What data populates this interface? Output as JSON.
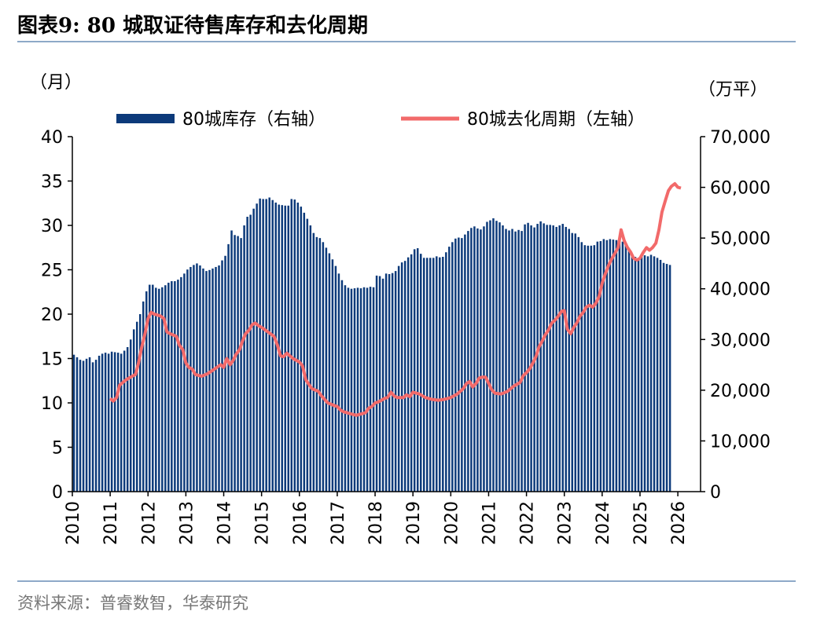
{
  "header": {
    "title": "图表9:   80 城取证待售库存和去化周期"
  },
  "footer": {
    "source": "资料来源：普睿数智，华泰研究"
  },
  "chart_data": {
    "type": "bar",
    "left_unit": "（月）",
    "right_unit": "（万平）",
    "x_ticks": [
      "2010",
      "2011",
      "2012",
      "2013",
      "2014",
      "2015",
      "2016",
      "2017",
      "2018",
      "2019",
      "2020",
      "2021",
      "2022",
      "2023",
      "2024",
      "2025",
      "2026"
    ],
    "left_ticks": [
      "0",
      "5",
      "10",
      "15",
      "20",
      "25",
      "30",
      "35",
      "40"
    ],
    "right_ticks": [
      "0",
      "10,000",
      "20,000",
      "30,000",
      "40,000",
      "50,000",
      "60,000",
      "70,000"
    ],
    "ylim_left": [
      0,
      40
    ],
    "ylim_right": [
      0,
      70000
    ],
    "xlim": [
      2010.0,
      2026.6
    ],
    "colors": {
      "bar": "#0c3a7a",
      "line": "#f26a6a",
      "rule": "#8ea9c8"
    },
    "bar_series": {
      "name": "80城库存（右轴）",
      "axis": "right",
      "start": 2010.0,
      "step_months": 1,
      "values": [
        27000,
        26500,
        26000,
        25800,
        26200,
        26500,
        25500,
        26000,
        26800,
        27200,
        27400,
        27200,
        27600,
        27500,
        27400,
        27200,
        27800,
        28500,
        30000,
        32000,
        33500,
        35000,
        37500,
        39500,
        40800,
        40800,
        40200,
        40000,
        40300,
        40700,
        41200,
        41500,
        41500,
        41800,
        42300,
        43000,
        43800,
        44300,
        44700,
        45000,
        44600,
        44000,
        43500,
        43700,
        44000,
        44300,
        44600,
        45600,
        46500,
        48800,
        51500,
        50600,
        50400,
        50000,
        52500,
        54200,
        54600,
        55800,
        56800,
        57800,
        57700,
        57700,
        58000,
        57500,
        57000,
        56600,
        56500,
        56400,
        56400,
        57700,
        57600,
        57000,
        56200,
        55000,
        53800,
        52500,
        51000,
        50200,
        50000,
        49200,
        48100,
        47000,
        45800,
        44500,
        43000,
        41700,
        40700,
        40200,
        40000,
        40100,
        40200,
        40100,
        40300,
        40200,
        40400,
        40300,
        42600,
        42500,
        42000,
        43000,
        42900,
        43100,
        43500,
        44500,
        45200,
        45500,
        46200,
        46800,
        47800,
        48000,
        46900,
        46100,
        46100,
        46100,
        46100,
        46400,
        46200,
        46300,
        47200,
        48300,
        49200,
        49900,
        50100,
        50000,
        50700,
        51400,
        52000,
        52300,
        51900,
        51700,
        52300,
        53200,
        53500,
        53900,
        53400,
        53100,
        52500,
        51800,
        51500,
        51800,
        51300,
        51600,
        51400,
        52700,
        53000,
        52500,
        52100,
        52800,
        53300,
        52900,
        52600,
        52600,
        52500,
        52200,
        52500,
        52800,
        52200,
        51800,
        51000,
        50900,
        50200,
        49200,
        48600,
        48500,
        48500,
        48600,
        49300,
        49400,
        49800,
        49600,
        49800,
        49700,
        49600,
        49500,
        49300,
        48800,
        47500,
        46900,
        46300,
        45900,
        46600,
        46600,
        46400,
        46700,
        46400,
        46100,
        45700,
        45100,
        44900,
        44700
      ]
    },
    "line_series": {
      "name": "80城去化周期（左轴）",
      "axis": "left",
      "points": [
        [
          2011.0,
          10.5
        ],
        [
          2011.08,
          10.2
        ],
        [
          2011.17,
          10.6
        ],
        [
          2011.25,
          12.0
        ],
        [
          2011.42,
          12.6
        ],
        [
          2011.58,
          13.0
        ],
        [
          2011.67,
          13.2
        ],
        [
          2011.75,
          14.5
        ],
        [
          2011.83,
          16.2
        ],
        [
          2011.92,
          17.8
        ],
        [
          2012.0,
          19.5
        ],
        [
          2012.08,
          20.2
        ],
        [
          2012.17,
          20.0
        ],
        [
          2012.33,
          19.8
        ],
        [
          2012.42,
          19.5
        ],
        [
          2012.5,
          18.0
        ],
        [
          2012.58,
          17.8
        ],
        [
          2012.75,
          17.5
        ],
        [
          2012.83,
          16.5
        ],
        [
          2012.92,
          16.0
        ],
        [
          2013.0,
          14.5
        ],
        [
          2013.08,
          14.0
        ],
        [
          2013.17,
          13.8
        ],
        [
          2013.25,
          13.2
        ],
        [
          2013.42,
          13.0
        ],
        [
          2013.58,
          13.3
        ],
        [
          2013.75,
          13.8
        ],
        [
          2013.92,
          14.3
        ],
        [
          2014.0,
          14.0
        ],
        [
          2014.08,
          15.0
        ],
        [
          2014.17,
          14.3
        ],
        [
          2014.25,
          14.8
        ],
        [
          2014.33,
          15.5
        ],
        [
          2014.42,
          16.0
        ],
        [
          2014.5,
          17.0
        ],
        [
          2014.58,
          17.8
        ],
        [
          2014.67,
          18.2
        ],
        [
          2014.75,
          18.8
        ],
        [
          2014.83,
          19.0
        ],
        [
          2014.92,
          18.7
        ],
        [
          2015.0,
          18.5
        ],
        [
          2015.17,
          18.0
        ],
        [
          2015.33,
          17.5
        ],
        [
          2015.42,
          16.5
        ],
        [
          2015.5,
          15.3
        ],
        [
          2015.58,
          15.2
        ],
        [
          2015.67,
          15.6
        ],
        [
          2015.75,
          15.3
        ],
        [
          2015.83,
          15.0
        ],
        [
          2015.92,
          14.8
        ],
        [
          2016.0,
          14.6
        ],
        [
          2016.08,
          14.2
        ],
        [
          2016.17,
          12.6
        ],
        [
          2016.25,
          12.1
        ],
        [
          2016.33,
          11.6
        ],
        [
          2016.5,
          11.3
        ],
        [
          2016.58,
          10.8
        ],
        [
          2016.75,
          10.0
        ],
        [
          2016.92,
          9.7
        ],
        [
          2017.0,
          9.6
        ],
        [
          2017.08,
          9.2
        ],
        [
          2017.17,
          9.0
        ],
        [
          2017.33,
          8.8
        ],
        [
          2017.5,
          8.6
        ],
        [
          2017.67,
          8.8
        ],
        [
          2017.75,
          8.9
        ],
        [
          2017.83,
          9.4
        ],
        [
          2017.92,
          9.6
        ],
        [
          2018.0,
          10.0
        ],
        [
          2018.08,
          10.1
        ],
        [
          2018.17,
          10.3
        ],
        [
          2018.25,
          10.5
        ],
        [
          2018.33,
          10.6
        ],
        [
          2018.42,
          11.2
        ],
        [
          2018.5,
          10.8
        ],
        [
          2018.58,
          10.6
        ],
        [
          2018.75,
          10.6
        ],
        [
          2018.83,
          10.9
        ],
        [
          2018.92,
          10.7
        ],
        [
          2019.0,
          11.2
        ],
        [
          2019.17,
          11.0
        ],
        [
          2019.33,
          10.6
        ],
        [
          2019.5,
          10.4
        ],
        [
          2019.67,
          10.3
        ],
        [
          2019.83,
          10.4
        ],
        [
          2020.0,
          10.6
        ],
        [
          2020.17,
          11.0
        ],
        [
          2020.33,
          11.6
        ],
        [
          2020.42,
          12.2
        ],
        [
          2020.5,
          12.4
        ],
        [
          2020.58,
          11.8
        ],
        [
          2020.67,
          12.2
        ],
        [
          2020.75,
          12.8
        ],
        [
          2020.83,
          12.9
        ],
        [
          2020.92,
          12.9
        ],
        [
          2021.0,
          12.2
        ],
        [
          2021.08,
          11.5
        ],
        [
          2021.17,
          11.1
        ],
        [
          2021.33,
          11.0
        ],
        [
          2021.5,
          11.3
        ],
        [
          2021.67,
          11.9
        ],
        [
          2021.83,
          12.3
        ],
        [
          2021.92,
          13.1
        ],
        [
          2022.0,
          13.4
        ],
        [
          2022.08,
          13.8
        ],
        [
          2022.17,
          14.5
        ],
        [
          2022.25,
          15.2
        ],
        [
          2022.33,
          16.3
        ],
        [
          2022.42,
          17.0
        ],
        [
          2022.5,
          17.7
        ],
        [
          2022.58,
          18.2
        ],
        [
          2022.67,
          19.0
        ],
        [
          2022.75,
          19.3
        ],
        [
          2022.83,
          19.7
        ],
        [
          2022.92,
          20.3
        ],
        [
          2023.0,
          20.4
        ],
        [
          2023.08,
          18.3
        ],
        [
          2023.17,
          17.8
        ],
        [
          2023.25,
          18.5
        ],
        [
          2023.33,
          19.0
        ],
        [
          2023.42,
          19.8
        ],
        [
          2023.5,
          20.2
        ],
        [
          2023.58,
          20.8
        ],
        [
          2023.67,
          21.0
        ],
        [
          2023.75,
          20.8
        ],
        [
          2023.83,
          21.2
        ],
        [
          2023.92,
          22.0
        ],
        [
          2024.0,
          23.5
        ],
        [
          2024.08,
          24.5
        ],
        [
          2024.17,
          25.5
        ],
        [
          2024.25,
          26.2
        ],
        [
          2024.33,
          26.8
        ],
        [
          2024.42,
          27.5
        ],
        [
          2024.5,
          29.5
        ],
        [
          2024.58,
          28.3
        ],
        [
          2024.67,
          27.5
        ],
        [
          2024.75,
          27.0
        ],
        [
          2024.83,
          26.3
        ],
        [
          2024.92,
          26.1
        ],
        [
          2025.0,
          26.3
        ],
        [
          2025.08,
          26.9
        ],
        [
          2025.17,
          27.5
        ],
        [
          2025.25,
          27.2
        ],
        [
          2025.33,
          27.5
        ],
        [
          2025.42,
          28.0
        ],
        [
          2025.5,
          29.5
        ],
        [
          2025.58,
          31.5
        ],
        [
          2025.67,
          32.8
        ],
        [
          2025.75,
          33.9
        ],
        [
          2025.83,
          34.4
        ],
        [
          2025.92,
          34.7
        ],
        [
          2026.0,
          34.3
        ],
        [
          2026.08,
          34.2
        ]
      ]
    },
    "legend": {
      "placement": "top"
    },
    "grid": false
  }
}
